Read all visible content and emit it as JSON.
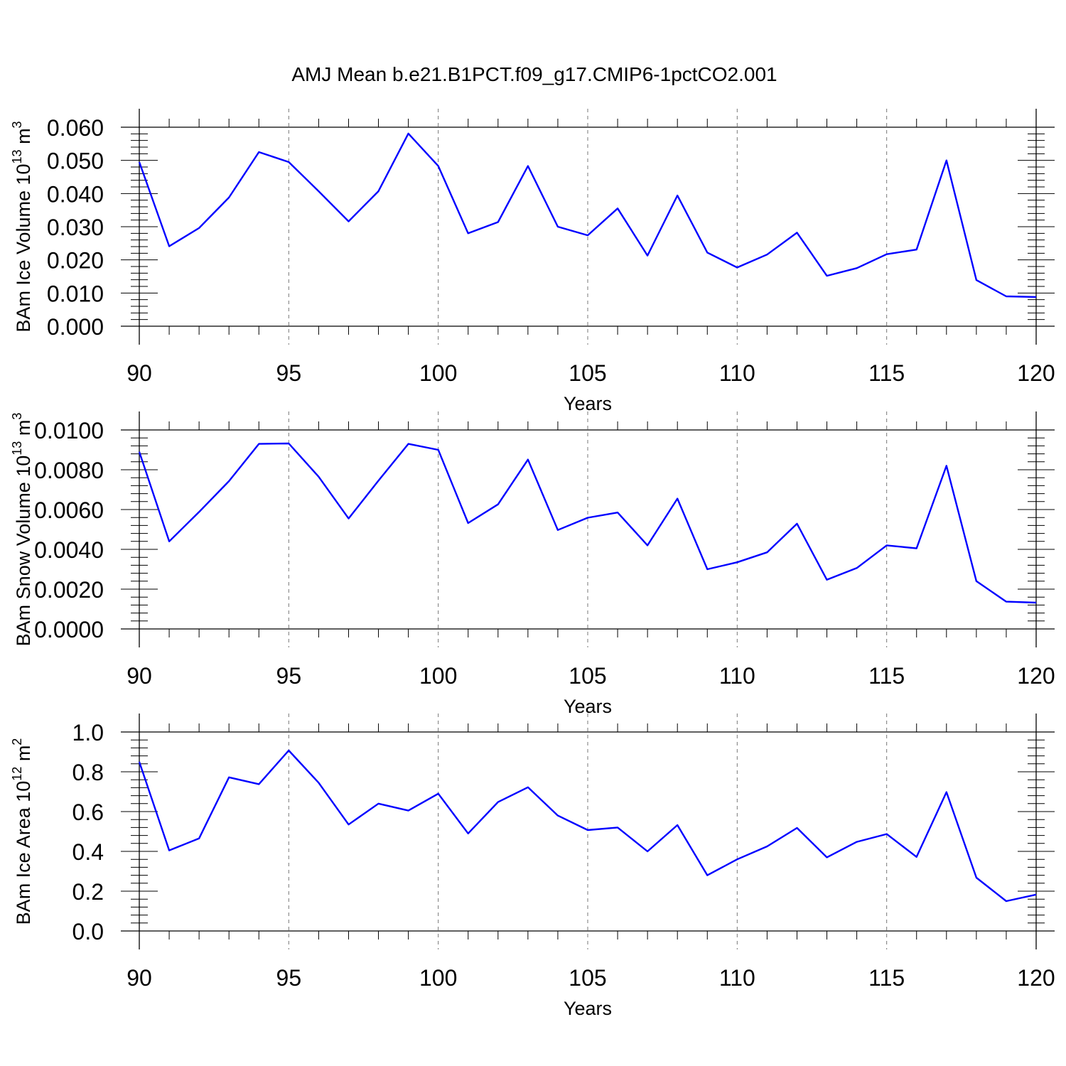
{
  "figure": {
    "title": "AMJ Mean b.e21.B1PCT.f09_g17.CMIP6-1pctCO2.001",
    "line_color": "#0000ff"
  },
  "chart_data": [
    {
      "type": "line",
      "xlabel": "Years",
      "ylabel_parts": {
        "base": "BAm Ice Volume 10",
        "exp": "13",
        "unit": " m",
        "unit_exp": "3"
      },
      "xlim": [
        90,
        120
      ],
      "ylim": [
        0,
        0.06
      ],
      "x_ticks": [
        90,
        95,
        100,
        105,
        110,
        115,
        120
      ],
      "x_tick_labels": [
        "90",
        "95",
        "100",
        "105",
        "110",
        "115",
        "120"
      ],
      "y_ticks": [
        0,
        0.01,
        0.02,
        0.03,
        0.04,
        0.05,
        0.06
      ],
      "y_tick_labels": [
        "0.000",
        "0.010",
        "0.020",
        "0.030",
        "0.040",
        "0.050",
        "0.060"
      ],
      "grid": "vertical dashed at major x ticks",
      "x": [
        90,
        91,
        92,
        93,
        94,
        95,
        96,
        97,
        98,
        99,
        100,
        101,
        102,
        103,
        104,
        105,
        106,
        107,
        108,
        109,
        110,
        111,
        112,
        113,
        114,
        115,
        116,
        117,
        118,
        119,
        120
      ],
      "values": [
        0.0495,
        0.0241,
        0.0296,
        0.0388,
        0.0525,
        0.0495,
        0.0407,
        0.0316,
        0.0407,
        0.0581,
        0.0483,
        0.028,
        0.0314,
        0.0483,
        0.03,
        0.0274,
        0.0355,
        0.0213,
        0.0394,
        0.0222,
        0.0177,
        0.0216,
        0.0282,
        0.0152,
        0.0175,
        0.0217,
        0.0231,
        0.05,
        0.0139,
        0.009,
        0.0088
      ]
    },
    {
      "type": "line",
      "xlabel": "Years",
      "ylabel_parts": {
        "base": "BAm Snow Volume 10",
        "exp": "13",
        "unit": " m",
        "unit_exp": "3"
      },
      "xlim": [
        90,
        120
      ],
      "ylim": [
        0,
        0.01
      ],
      "x_ticks": [
        90,
        95,
        100,
        105,
        110,
        115,
        120
      ],
      "x_tick_labels": [
        "90",
        "95",
        "100",
        "105",
        "110",
        "115",
        "120"
      ],
      "y_ticks": [
        0,
        0.002,
        0.004,
        0.006,
        0.008,
        0.01
      ],
      "y_tick_labels": [
        "0.0000",
        "0.0020",
        "0.0040",
        "0.0060",
        "0.0080",
        "0.0100"
      ],
      "grid": "vertical dashed at major x ticks",
      "x": [
        90,
        91,
        92,
        93,
        94,
        95,
        96,
        97,
        98,
        99,
        100,
        101,
        102,
        103,
        104,
        105,
        106,
        107,
        108,
        109,
        110,
        111,
        112,
        113,
        114,
        115,
        116,
        117,
        118,
        119,
        120
      ],
      "values": [
        0.0089,
        0.0044,
        0.00588,
        0.00743,
        0.0093,
        0.00932,
        0.00765,
        0.00555,
        0.00745,
        0.0093,
        0.009,
        0.00532,
        0.00626,
        0.00851,
        0.00497,
        0.00559,
        0.00585,
        0.0042,
        0.00655,
        0.003,
        0.00335,
        0.00385,
        0.00529,
        0.00247,
        0.00306,
        0.0042,
        0.00405,
        0.0082,
        0.0024,
        0.00137,
        0.00132
      ]
    },
    {
      "type": "line",
      "xlabel": "Years",
      "ylabel_parts": {
        "base": "BAm Ice Area 10",
        "exp": "12",
        "unit": " m",
        "unit_exp": "2"
      },
      "xlim": [
        90,
        120
      ],
      "ylim": [
        0,
        1.0
      ],
      "x_ticks": [
        90,
        95,
        100,
        105,
        110,
        115,
        120
      ],
      "x_tick_labels": [
        "90",
        "95",
        "100",
        "105",
        "110",
        "115",
        "120"
      ],
      "y_ticks": [
        0,
        0.2,
        0.4,
        0.6,
        0.8,
        1.0
      ],
      "y_tick_labels": [
        "0.0",
        "0.2",
        "0.4",
        "0.6",
        "0.8",
        "1.0"
      ],
      "grid": "vertical dashed at major x ticks",
      "x": [
        90,
        91,
        92,
        93,
        94,
        95,
        96,
        97,
        98,
        99,
        100,
        101,
        102,
        103,
        104,
        105,
        106,
        107,
        108,
        109,
        110,
        111,
        112,
        113,
        114,
        115,
        116,
        117,
        118,
        119,
        120
      ],
      "values": [
        0.85,
        0.405,
        0.465,
        0.772,
        0.738,
        0.907,
        0.745,
        0.535,
        0.64,
        0.605,
        0.69,
        0.49,
        0.648,
        0.722,
        0.58,
        0.507,
        0.52,
        0.4,
        0.532,
        0.28,
        0.36,
        0.425,
        0.518,
        0.37,
        0.448,
        0.487,
        0.372,
        0.698,
        0.268,
        0.15,
        0.183
      ]
    }
  ]
}
